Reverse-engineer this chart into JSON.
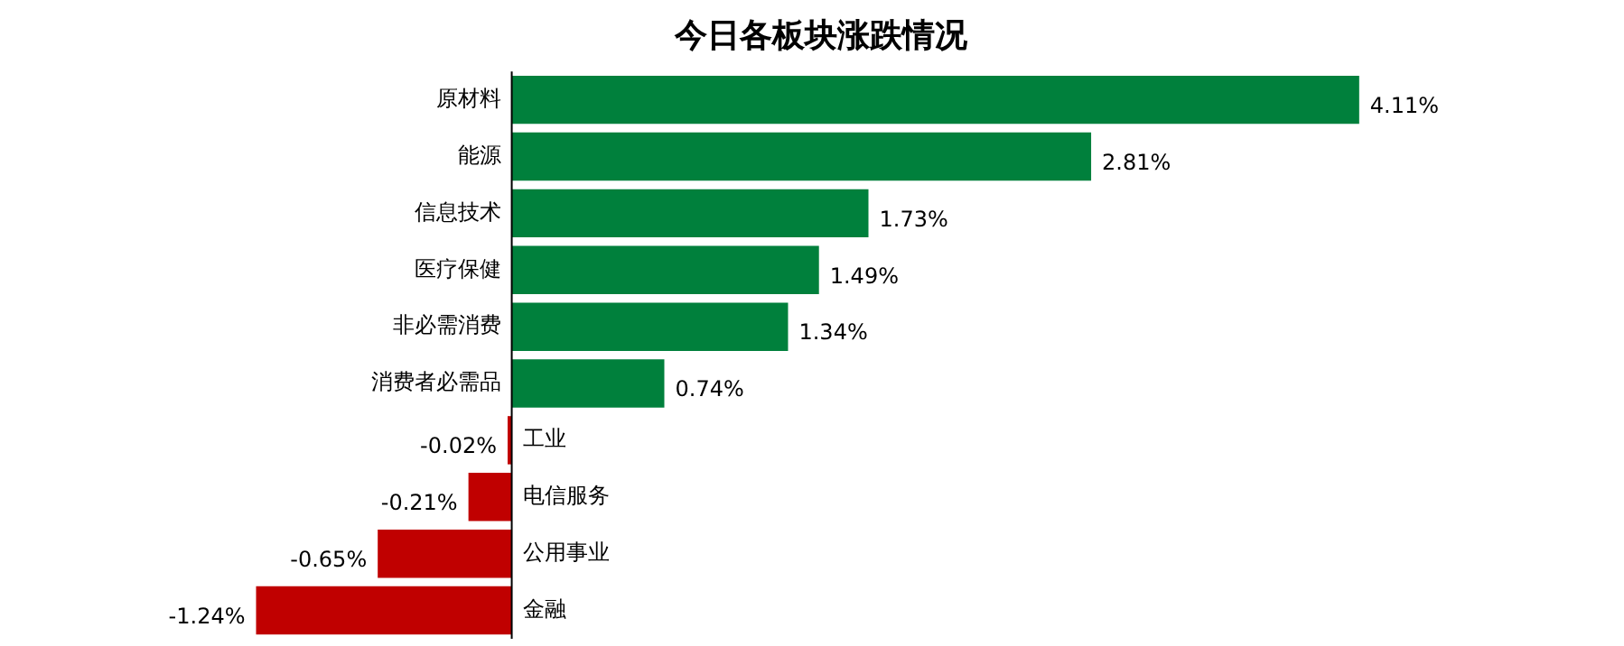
{
  "chart_data": {
    "type": "bar",
    "orientation": "horizontal",
    "title": "今日各板块涨跌情况",
    "categories": [
      "原材料",
      "能源",
      "信息技术",
      "医疗保健",
      "非必需消费",
      "消费者必需品",
      "工业",
      "电信服务",
      "公用事业",
      "金融"
    ],
    "values": [
      4.11,
      2.81,
      1.73,
      1.49,
      1.34,
      0.74,
      -0.02,
      -0.21,
      -0.65,
      -1.24
    ],
    "colors": [
      "#00803c",
      "#00803c",
      "#00803c",
      "#00803c",
      "#00803c",
      "#00803c",
      "#c00000",
      "#c00000",
      "#c00000",
      "#c00000"
    ],
    "value_labels": [
      "4.11%",
      "2.81%",
      "1.73%",
      "1.49%",
      "1.34%",
      "0.74%",
      "-0.02%",
      "-0.21%",
      "-0.65%",
      "-1.24%"
    ],
    "tick_labels": "y",
    "legend": false
  }
}
